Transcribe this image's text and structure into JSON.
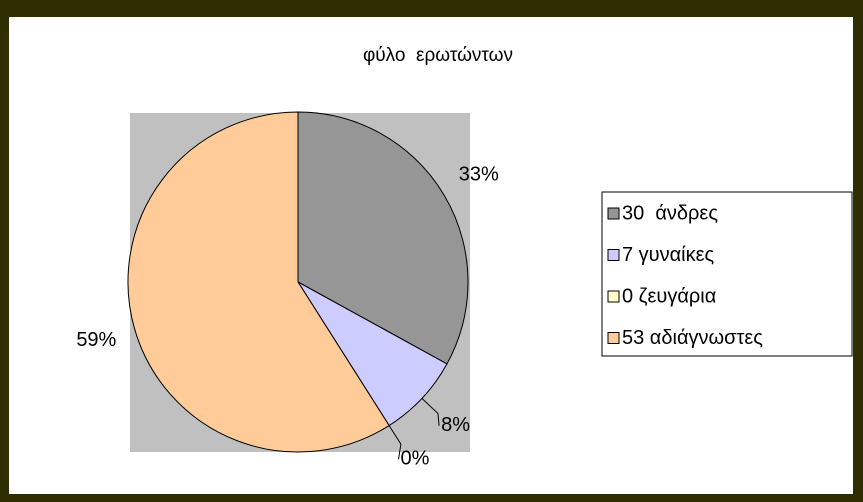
{
  "chart_data": {
    "type": "pie",
    "title": "φύλο  ερωτώντων",
    "categories": [
      "30  άνδρες",
      "7 γυναίκες",
      "0 ζευγάρια",
      "53 αδιάγνωστες"
    ],
    "values": [
      33,
      8,
      0,
      59
    ],
    "value_labels": [
      "33%",
      "8%",
      "0%",
      "59%"
    ],
    "colors": [
      "#969696",
      "#ccccff",
      "#ffffcc",
      "#ffcc99"
    ],
    "legend": "right"
  }
}
